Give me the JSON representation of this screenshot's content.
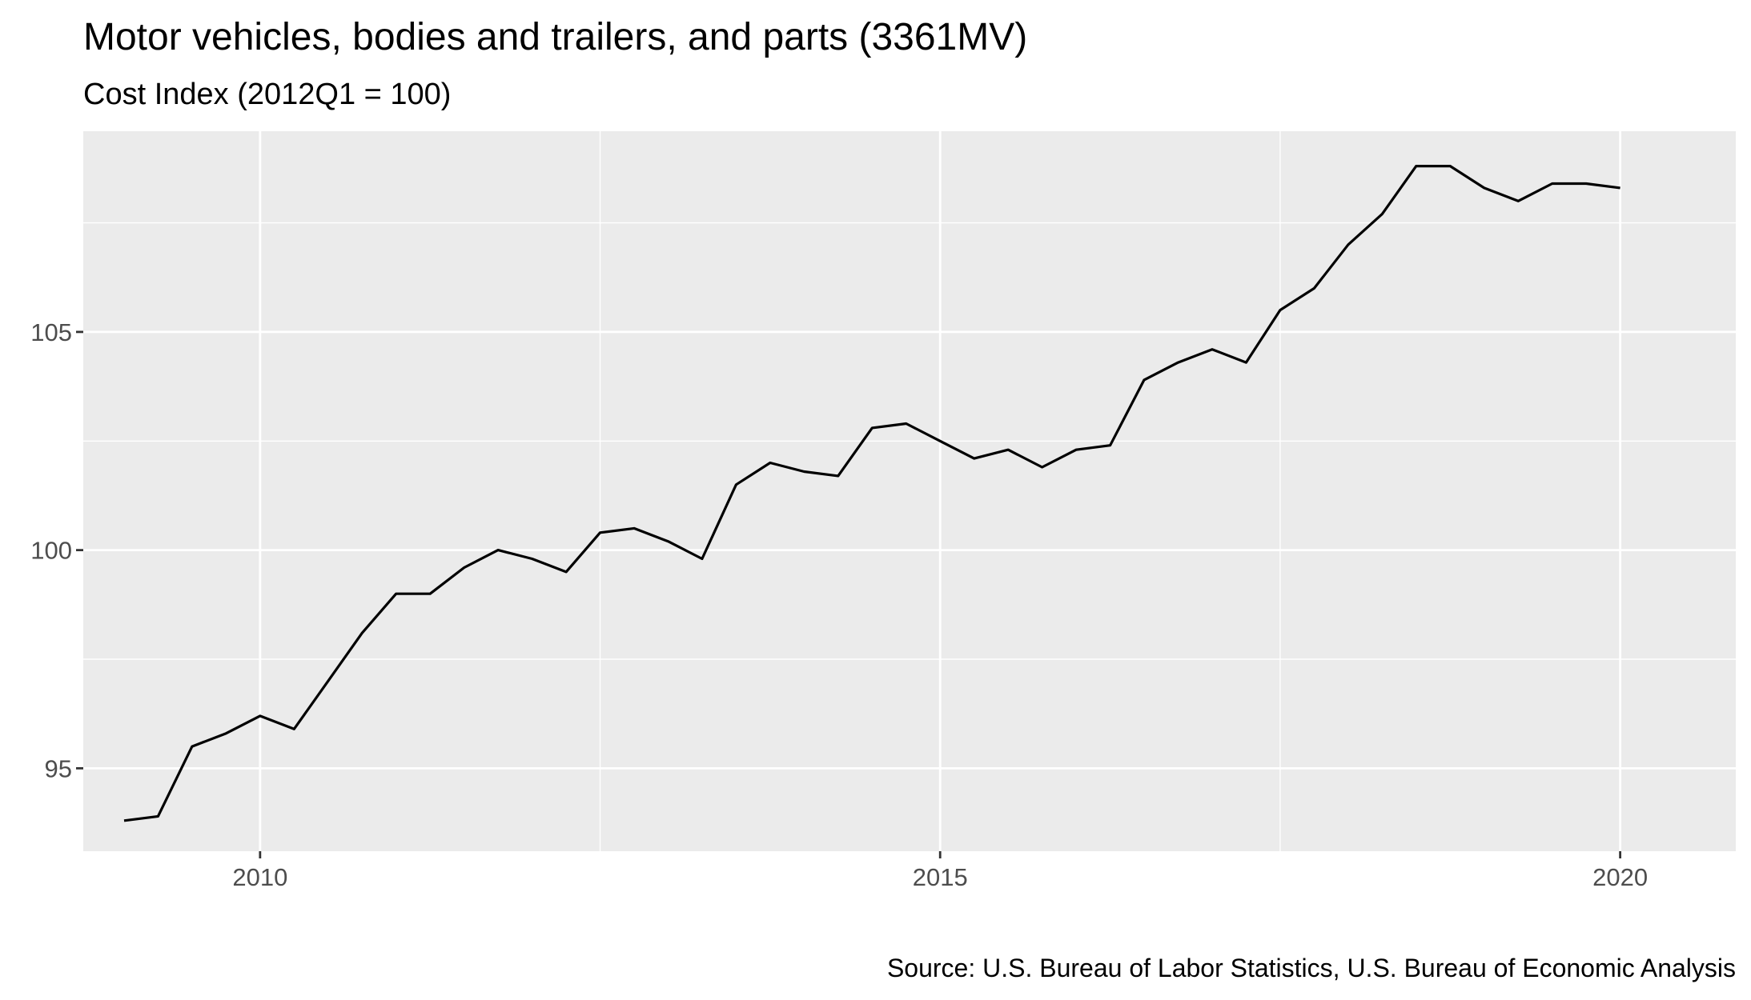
{
  "chart_data": {
    "type": "line",
    "title": "Motor vehicles, bodies and trailers, and parts (3361MV)",
    "subtitle": "Cost Index (2012Q1 = 100)",
    "caption": "Source: U.S. Bureau of Labor Statistics, U.S. Bureau of Economic Analysis",
    "xlabel": "",
    "ylabel": "",
    "xlim": [
      2008.7,
      2020.85
    ],
    "ylim": [
      93.1,
      109.6
    ],
    "x_ticks": [
      2010,
      2015,
      2020
    ],
    "x_minor_ticks": [
      2012.5,
      2017.5
    ],
    "y_ticks": [
      95,
      100,
      105
    ],
    "y_minor_ticks": [
      97.5,
      102.5,
      107.5
    ],
    "grid": true,
    "legend": "none",
    "series": [
      {
        "x": [
          2009.0,
          2009.25,
          2009.5,
          2009.75,
          2010.0,
          2010.25,
          2010.5,
          2010.75,
          2011.0,
          2011.25,
          2011.5,
          2011.75,
          2012.0,
          2012.25,
          2012.5,
          2012.75,
          2013.0,
          2013.25,
          2013.5,
          2013.75,
          2014.0,
          2014.25,
          2014.5,
          2014.75,
          2015.0,
          2015.25,
          2015.5,
          2015.75,
          2016.0,
          2016.25,
          2016.5,
          2016.75,
          2017.0,
          2017.25,
          2017.5,
          2017.75,
          2018.0,
          2018.25,
          2018.5,
          2018.75,
          2019.0,
          2019.25,
          2019.5,
          2019.75,
          2020.0
        ],
        "values": [
          93.8,
          93.9,
          95.5,
          95.8,
          96.2,
          95.9,
          97.0,
          98.1,
          99.0,
          99.0,
          99.6,
          100.0,
          99.8,
          99.5,
          100.4,
          100.5,
          100.2,
          99.8,
          101.5,
          102.0,
          101.8,
          101.7,
          102.8,
          102.9,
          102.5,
          102.1,
          102.3,
          101.9,
          102.3,
          102.4,
          103.9,
          104.3,
          104.6,
          104.3,
          105.5,
          106.0,
          107.0,
          107.7,
          108.8,
          108.8,
          108.3,
          108.0,
          108.4,
          108.4,
          108.3
        ]
      }
    ]
  }
}
